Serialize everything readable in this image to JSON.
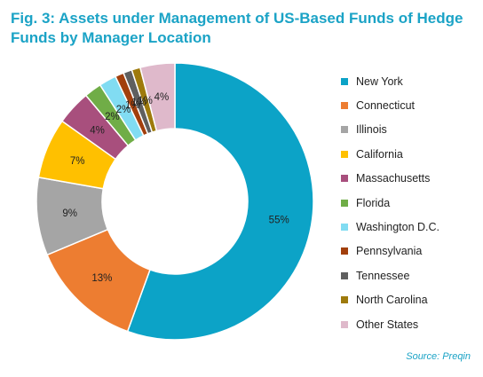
{
  "chart_data": {
    "type": "pie",
    "donut": true,
    "title": "Fig. 3: Assets under Management of US-Based Funds of Hedge Funds by Manager Location",
    "source": "Source: Preqin",
    "legend_position": "right",
    "slices": [
      {
        "label": "New York",
        "value": 55,
        "display": "55%",
        "color": "#0ca3c7"
      },
      {
        "label": "Connecticut",
        "value": 13,
        "display": "13%",
        "color": "#ed7d31"
      },
      {
        "label": "Illinois",
        "value": 9,
        "display": "9%",
        "color": "#a5a5a5"
      },
      {
        "label": "California",
        "value": 7,
        "display": "7%",
        "color": "#ffc000"
      },
      {
        "label": "Massachusetts",
        "value": 4,
        "display": "4%",
        "color": "#a84f7d"
      },
      {
        "label": "Florida",
        "value": 2,
        "display": "2%",
        "color": "#70ad47"
      },
      {
        "label": "Washington D.C.",
        "value": 2,
        "display": "2%",
        "color": "#81dcf2"
      },
      {
        "label": "Pennsylvania",
        "value": 1,
        "display": "1%",
        "color": "#a23f0c"
      },
      {
        "label": "Tennessee",
        "value": 1,
        "display": "1%",
        "color": "#5f5f5f"
      },
      {
        "label": "North Carolina",
        "value": 1,
        "display": "1%",
        "color": "#9e7a0c"
      },
      {
        "label": "Other States",
        "value": 4,
        "display": "4%",
        "color": "#dfb9cb"
      }
    ]
  }
}
